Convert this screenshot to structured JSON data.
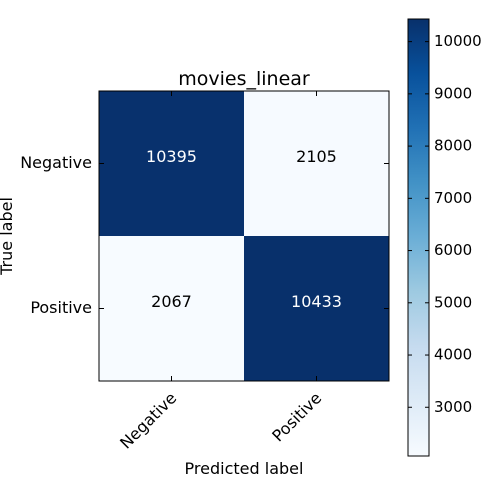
{
  "chart_data": {
    "type": "heatmap",
    "title": "movies_linear",
    "xlabel": "Predicted label",
    "ylabel": "True label",
    "x_categories": [
      "Negative",
      "Positive"
    ],
    "y_categories": [
      "Negative",
      "Positive"
    ],
    "values": [
      [
        10395,
        2105
      ],
      [
        2067,
        10433
      ]
    ],
    "colormap": "Blues",
    "colorbar": {
      "ticks": [
        "3000",
        "4000",
        "5000",
        "6000",
        "7000",
        "8000",
        "9000",
        "10000"
      ],
      "range": [
        2067,
        10433
      ]
    },
    "cell_text_colors": {
      "on_dark": "#ffffff",
      "on_light": "#000000"
    }
  }
}
